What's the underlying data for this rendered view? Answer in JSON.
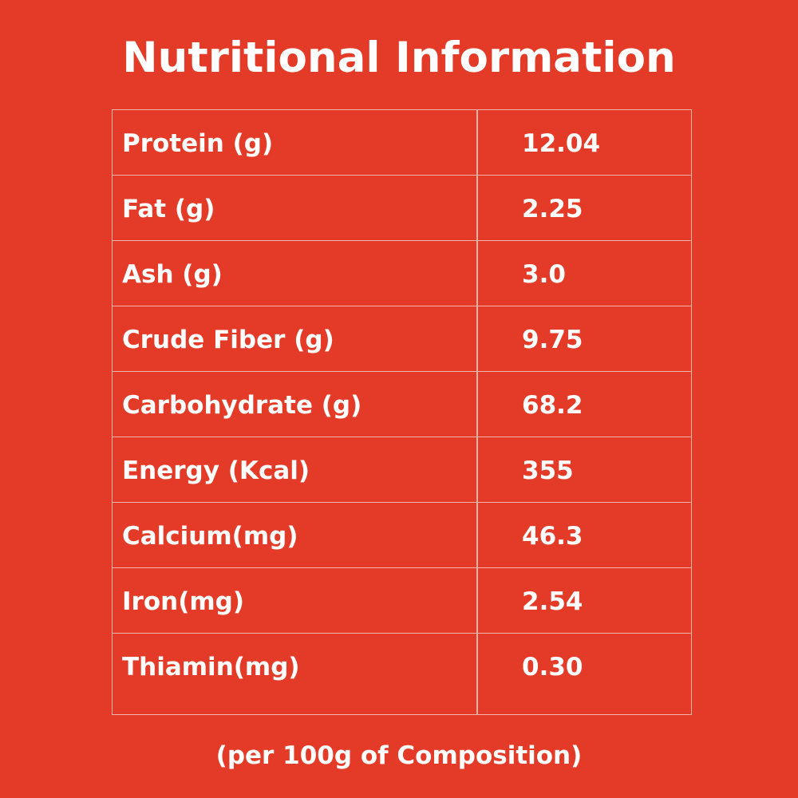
{
  "title": "Nutritional Information",
  "table": {
    "rows": [
      {
        "label": "Protein (g)",
        "value": "12.04"
      },
      {
        "label": "Fat (g)",
        "value": "2.25"
      },
      {
        "label": "Ash (g)",
        "value": "3.0"
      },
      {
        "label": "Crude Fiber (g)",
        "value": "9.75"
      },
      {
        "label": "Carbohydrate (g)",
        "value": "68.2"
      },
      {
        "label": "Energy (Kcal)",
        "value": "355"
      },
      {
        "label": "Calcium(mg)",
        "value": "46.3"
      },
      {
        "label": "Iron(mg)",
        "value": "2.54"
      },
      {
        "label": "Thiamin(mg)",
        "value": "0.30"
      }
    ]
  },
  "footnote": "(per 100g of Composition)",
  "colors": {
    "background": "#e33b27",
    "text": "#ffffff",
    "grid_lines": "#f3b4a9"
  }
}
